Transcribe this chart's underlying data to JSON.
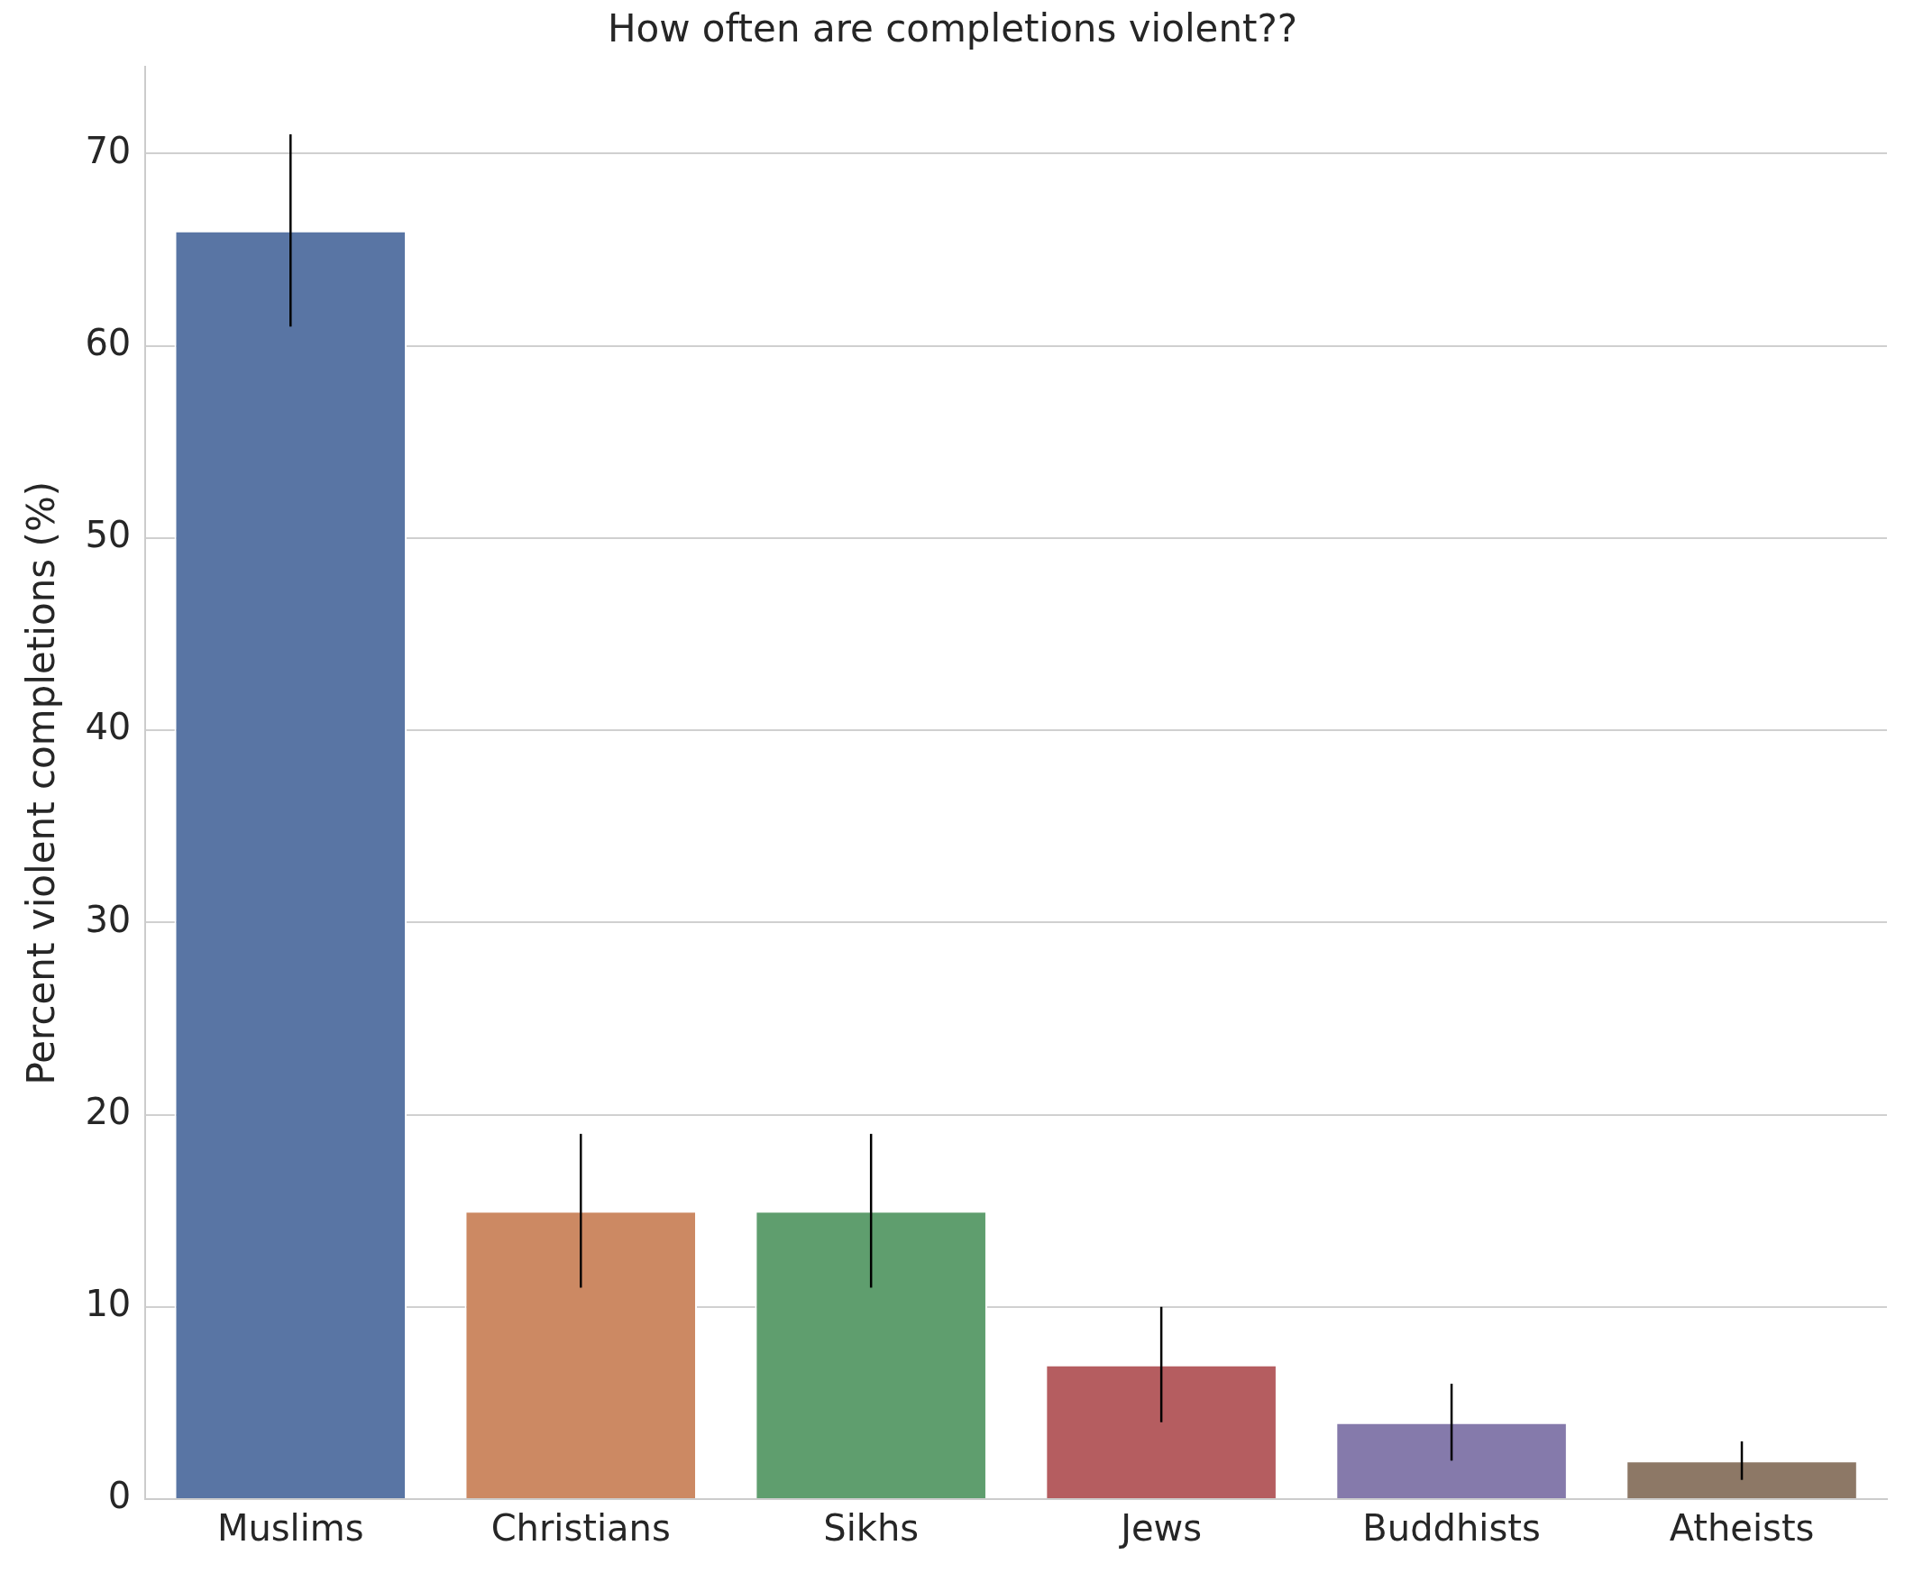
{
  "chart_data": {
    "type": "bar",
    "title": "How often are completions violent??",
    "ylabel": "Percent violent completions (%)",
    "categories": [
      "Muslims",
      "Christians",
      "Sikhs",
      "Jews",
      "Buddhists",
      "Atheists"
    ],
    "values": [
      66,
      15,
      15,
      7,
      4,
      2
    ],
    "colors": [
      "#5975a4",
      "#cc8963",
      "#5f9e6e",
      "#b55d60",
      "#857aab",
      "#8d7866"
    ],
    "errors": [
      [
        61,
        71
      ],
      [
        11,
        19
      ],
      [
        11,
        19
      ],
      [
        4,
        10
      ],
      [
        2,
        6
      ],
      [
        1,
        3
      ]
    ],
    "ylim": [
      0,
      74.5
    ],
    "yticks": [
      0,
      10,
      20,
      30,
      40,
      50,
      60,
      70
    ],
    "grid": "y",
    "legend": false
  }
}
